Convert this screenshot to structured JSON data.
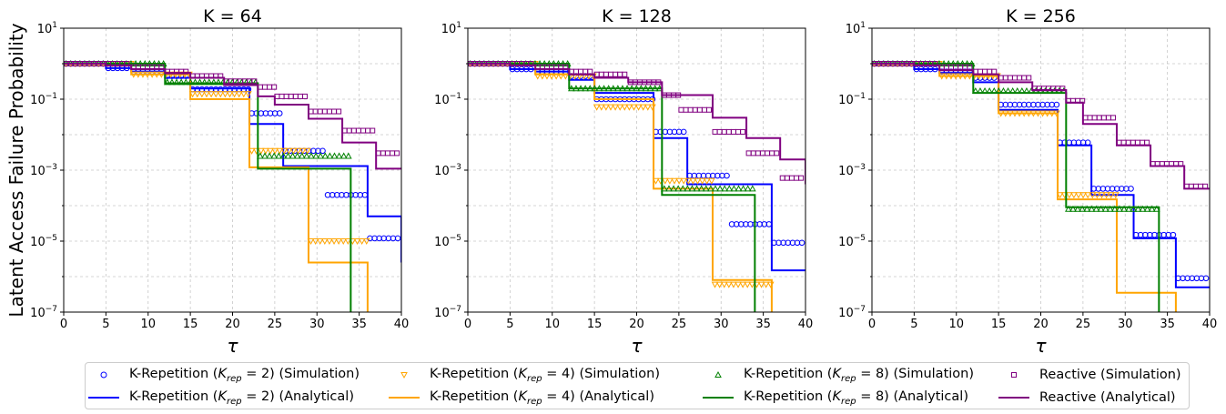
{
  "ylabel": "Latent Access Failure Probability",
  "xlabel": "τ",
  "colors": {
    "krep2": "#0000ff",
    "krep4": "#ffa500",
    "krep8": "#008000",
    "reactive": "#800080"
  },
  "legend": {
    "items": [
      {
        "key": "krep2",
        "kind": "sim",
        "marker": "circle",
        "prefix": "K-Repetition (",
        "var": "K",
        "sub": "rep",
        "mid": " = 2) ",
        "suffix": "(Simulation)"
      },
      {
        "key": "krep2",
        "kind": "ana",
        "marker": "line",
        "prefix": "K-Repetition (",
        "var": "K",
        "sub": "rep",
        "mid": " = 2) ",
        "suffix": "(Analytical)"
      },
      {
        "key": "krep4",
        "kind": "sim",
        "marker": "triangle-down",
        "prefix": "K-Repetition (",
        "var": "K",
        "sub": "rep",
        "mid": " = 4) ",
        "suffix": "(Simulation)"
      },
      {
        "key": "krep4",
        "kind": "ana",
        "marker": "line",
        "prefix": "K-Repetition (",
        "var": "K",
        "sub": "rep",
        "mid": " = 4) ",
        "suffix": "(Analytical)"
      },
      {
        "key": "krep8",
        "kind": "sim",
        "marker": "triangle-up",
        "prefix": "K-Repetition (",
        "var": "K",
        "sub": "rep",
        "mid": " = 8) ",
        "suffix": "(Simulation)"
      },
      {
        "key": "krep8",
        "kind": "ana",
        "marker": "line",
        "prefix": "K-Repetition (",
        "var": "K",
        "sub": "rep",
        "mid": " = 8) ",
        "suffix": "(Analytical)"
      },
      {
        "key": "reactive",
        "kind": "sim",
        "marker": "square",
        "prefix": "Reactive ",
        "var": "",
        "sub": "",
        "mid": "",
        "suffix": "(Simulation)"
      },
      {
        "key": "reactive",
        "kind": "ana",
        "marker": "line",
        "prefix": "Reactive ",
        "var": "",
        "sub": "",
        "mid": "",
        "suffix": "(Analytical)"
      }
    ]
  },
  "chart_data": [
    {
      "type": "line",
      "title": "K = 64",
      "xlabel": "τ",
      "ylabel": "Latent Access Failure Probability",
      "xlim": [
        0,
        40
      ],
      "ylim": [
        1e-07,
        10
      ],
      "yscale": "log",
      "grid": true,
      "xticks": [
        "0",
        "5",
        "10",
        "15",
        "20",
        "25",
        "30",
        "35",
        "40"
      ],
      "yticks": [
        {
          "base": "10",
          "exp": "1"
        },
        {
          "base": "10",
          "exp": "−1"
        },
        {
          "base": "10",
          "exp": "−3"
        },
        {
          "base": "10",
          "exp": "−5"
        },
        {
          "base": "10",
          "exp": "−7"
        }
      ],
      "series": [
        {
          "name": "K-Repetition (Krep = 2) (Analytical)",
          "key": "krep2",
          "kind": "ana",
          "x": [
            0,
            5,
            8,
            12,
            15,
            22,
            26,
            31,
            36,
            40
          ],
          "y": [
            1,
            0.75,
            0.6,
            0.4,
            0.2,
            0.02,
            0.0013,
            0.0013,
            5e-05,
            2.5e-06
          ]
        },
        {
          "name": "K-Repetition (Krep = 2) (Simulation)",
          "key": "krep2",
          "kind": "sim",
          "x": [
            0,
            5,
            8,
            12,
            15,
            22,
            26,
            31,
            36,
            40
          ],
          "y": [
            1,
            0.75,
            0.6,
            0.45,
            0.19,
            0.04,
            0.0035,
            0.0002,
            1.2e-05,
            1.2e-05
          ]
        },
        {
          "name": "K-Repetition (Krep = 4) (Analytical)",
          "key": "krep4",
          "kind": "ana",
          "x": [
            0,
            8,
            15,
            22,
            29,
            36,
            40
          ],
          "y": [
            1,
            0.5,
            0.1,
            0.0012,
            2.5e-06,
            5e-08,
            5e-08
          ]
        },
        {
          "name": "K-Repetition (Krep = 4) (Simulation)",
          "key": "krep4",
          "kind": "sim",
          "x": [
            0,
            8,
            15,
            22,
            29,
            36
          ],
          "y": [
            1,
            0.5,
            0.14,
            0.0035,
            1e-05,
            1e-05
          ]
        },
        {
          "name": "K-Repetition (Krep = 8) (Analytical)",
          "key": "krep8",
          "kind": "ana",
          "x": [
            0,
            12,
            23,
            34,
            40
          ],
          "y": [
            1,
            0.28,
            0.0011,
            5e-08,
            5e-08
          ]
        },
        {
          "name": "K-Repetition (Krep = 8) (Simulation)",
          "key": "krep8",
          "kind": "sim",
          "x": [
            0,
            12,
            23,
            34
          ],
          "y": [
            1,
            0.3,
            0.0025,
            0.0025
          ]
        },
        {
          "name": "Reactive (Analytical)",
          "key": "reactive",
          "kind": "ana",
          "x": [
            0,
            5,
            8,
            12,
            15,
            19,
            23,
            25,
            29,
            33,
            37,
            40
          ],
          "y": [
            1,
            0.9,
            0.7,
            0.55,
            0.4,
            0.25,
            0.12,
            0.07,
            0.028,
            0.006,
            0.0011,
            0.0011
          ]
        },
        {
          "name": "Reactive (Simulation)",
          "key": "reactive",
          "kind": "sim",
          "x": [
            0,
            5,
            8,
            12,
            15,
            19,
            23,
            25,
            29,
            33,
            37,
            40
          ],
          "y": [
            1,
            1,
            0.8,
            0.6,
            0.45,
            0.32,
            0.22,
            0.12,
            0.045,
            0.013,
            0.003,
            0.003
          ]
        }
      ]
    },
    {
      "type": "line",
      "title": "K = 128",
      "xlabel": "τ",
      "ylabel": "",
      "xlim": [
        0,
        40
      ],
      "ylim": [
        1e-07,
        10
      ],
      "yscale": "log",
      "grid": true,
      "xticks": [
        "0",
        "5",
        "10",
        "15",
        "20",
        "25",
        "30",
        "35",
        "40"
      ],
      "yticks": [
        {
          "base": "10",
          "exp": "1"
        },
        {
          "base": "10",
          "exp": "−1"
        },
        {
          "base": "10",
          "exp": "−3"
        },
        {
          "base": "10",
          "exp": "−5"
        },
        {
          "base": "10",
          "exp": "−7"
        }
      ],
      "series": [
        {
          "name": "K-Repetition (Krep = 2) (Analytical)",
          "key": "krep2",
          "kind": "ana",
          "x": [
            0,
            5,
            8,
            12,
            15,
            19,
            22,
            26,
            31,
            36,
            40
          ],
          "y": [
            1,
            0.7,
            0.6,
            0.35,
            0.15,
            0.15,
            0.008,
            0.0004,
            0.0004,
            1.5e-06,
            1.5e-06
          ]
        },
        {
          "name": "K-Repetition (Krep = 2) (Simulation)",
          "key": "krep2",
          "kind": "sim",
          "x": [
            0,
            5,
            8,
            12,
            15,
            22,
            26,
            31,
            36,
            40
          ],
          "y": [
            1,
            0.7,
            0.6,
            0.45,
            0.1,
            0.012,
            0.0007,
            3e-05,
            9e-06,
            9e-06
          ]
        },
        {
          "name": "K-Repetition (Krep = 4) (Analytical)",
          "key": "krep4",
          "kind": "ana",
          "x": [
            0,
            8,
            15,
            22,
            29,
            36,
            40
          ],
          "y": [
            1,
            0.5,
            0.1,
            0.0003,
            8e-07,
            5e-08,
            5e-08
          ]
        },
        {
          "name": "K-Repetition (Krep = 4) (Simulation)",
          "key": "krep4",
          "kind": "sim",
          "x": [
            0,
            8,
            15,
            22,
            29,
            36
          ],
          "y": [
            1,
            0.45,
            0.06,
            0.0005,
            6e-07,
            6e-07
          ]
        },
        {
          "name": "K-Repetition (Krep = 8) (Analytical)",
          "key": "krep8",
          "kind": "ana",
          "x": [
            0,
            12,
            23,
            34,
            40
          ],
          "y": [
            1,
            0.2,
            0.0002,
            5e-08,
            5e-08
          ]
        },
        {
          "name": "K-Repetition (Krep = 8) (Simulation)",
          "key": "krep8",
          "kind": "sim",
          "x": [
            0,
            12,
            23,
            34
          ],
          "y": [
            1,
            0.2,
            0.0003,
            0.0003
          ]
        },
        {
          "name": "Reactive (Analytical)",
          "key": "reactive",
          "kind": "ana",
          "x": [
            0,
            5,
            8,
            12,
            15,
            19,
            23,
            29,
            33,
            37,
            40
          ],
          "y": [
            1,
            0.9,
            0.7,
            0.5,
            0.4,
            0.3,
            0.13,
            0.03,
            0.008,
            0.002,
            0.0004
          ]
        },
        {
          "name": "Reactive (Simulation)",
          "key": "reactive",
          "kind": "sim",
          "x": [
            0,
            5,
            8,
            12,
            15,
            19,
            23,
            25,
            29,
            33,
            37,
            40
          ],
          "y": [
            1,
            1,
            0.8,
            0.6,
            0.5,
            0.3,
            0.13,
            0.05,
            0.012,
            0.003,
            0.0006,
            0.0006
          ]
        }
      ]
    },
    {
      "type": "line",
      "title": "K = 256",
      "xlabel": "τ",
      "ylabel": "",
      "xlim": [
        0,
        40
      ],
      "ylim": [
        1e-07,
        10
      ],
      "yscale": "log",
      "grid": true,
      "xticks": [
        "0",
        "5",
        "10",
        "15",
        "20",
        "25",
        "30",
        "35",
        "40"
      ],
      "yticks": [
        {
          "base": "10",
          "exp": "1"
        },
        {
          "base": "10",
          "exp": "−1"
        },
        {
          "base": "10",
          "exp": "−3"
        },
        {
          "base": "10",
          "exp": "−5"
        },
        {
          "base": "10",
          "exp": "−7"
        }
      ],
      "series": [
        {
          "name": "K-Repetition (Krep = 2) (Analytical)",
          "key": "krep2",
          "kind": "ana",
          "x": [
            0,
            5,
            8,
            12,
            15,
            22,
            26,
            31,
            36,
            40
          ],
          "y": [
            1,
            0.7,
            0.55,
            0.3,
            0.05,
            0.005,
            0.0002,
            1.2e-05,
            5e-07,
            5e-07
          ]
        },
        {
          "name": "K-Repetition (Krep = 2) (Simulation)",
          "key": "krep2",
          "kind": "sim",
          "x": [
            0,
            5,
            8,
            12,
            15,
            22,
            26,
            31,
            36,
            40
          ],
          "y": [
            1,
            0.7,
            0.6,
            0.4,
            0.07,
            0.006,
            0.0003,
            1.5e-05,
            9e-07,
            9e-07
          ]
        },
        {
          "name": "K-Repetition (Krep = 4) (Analytical)",
          "key": "krep4",
          "kind": "ana",
          "x": [
            0,
            8,
            15,
            22,
            29,
            36,
            40
          ],
          "y": [
            1,
            0.45,
            0.04,
            0.00015,
            3.5e-07,
            5e-08,
            5e-08
          ]
        },
        {
          "name": "K-Repetition (Krep = 4) (Simulation)",
          "key": "krep4",
          "kind": "sim",
          "x": [
            0,
            8,
            15,
            22,
            29
          ],
          "y": [
            1,
            0.45,
            0.04,
            0.0002,
            0.0002
          ]
        },
        {
          "name": "K-Repetition (Krep = 8) (Analytical)",
          "key": "krep8",
          "kind": "ana",
          "x": [
            0,
            12,
            23,
            34,
            40
          ],
          "y": [
            1,
            0.15,
            9e-05,
            5e-08,
            5e-08
          ]
        },
        {
          "name": "K-Repetition (Krep = 8) (Simulation)",
          "key": "krep8",
          "kind": "sim",
          "x": [
            0,
            12,
            23,
            34
          ],
          "y": [
            1,
            0.17,
            8e-05,
            8e-05
          ]
        },
        {
          "name": "Reactive (Analytical)",
          "key": "reactive",
          "kind": "ana",
          "x": [
            0,
            5,
            8,
            12,
            15,
            19,
            23,
            25,
            29,
            33,
            37,
            40
          ],
          "y": [
            1,
            0.9,
            0.65,
            0.5,
            0.3,
            0.18,
            0.08,
            0.02,
            0.005,
            0.0013,
            0.0003,
            0.0003
          ]
        },
        {
          "name": "Reactive (Simulation)",
          "key": "reactive",
          "kind": "sim",
          "x": [
            0,
            5,
            8,
            12,
            15,
            19,
            23,
            25,
            29,
            33,
            37,
            40
          ],
          "y": [
            1,
            1,
            0.8,
            0.6,
            0.4,
            0.2,
            0.09,
            0.03,
            0.006,
            0.0015,
            0.00035,
            0.00035
          ]
        }
      ]
    }
  ]
}
